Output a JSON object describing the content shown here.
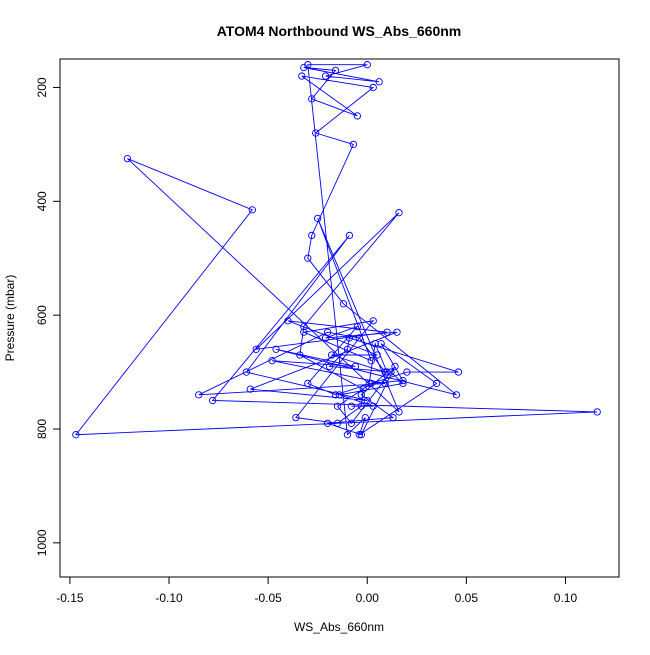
{
  "chart_data": {
    "type": "scatter",
    "title": "ATOM4 Northbound WS_Abs_660nm",
    "xlabel": "WS_Abs_660nm",
    "ylabel": "Pressure (mbar)",
    "xlim": [
      -0.155,
      0.127
    ],
    "ylim": [
      1060,
      150
    ],
    "y_reversed": true,
    "grid": false,
    "legend": "none",
    "x_ticks": [
      {
        "value": -0.15,
        "label": "-0.15"
      },
      {
        "value": -0.1,
        "label": "-0.10"
      },
      {
        "value": -0.05,
        "label": "-0.05"
      },
      {
        "value": 0.0,
        "label": "0.00"
      },
      {
        "value": 0.05,
        "label": "0.05"
      },
      {
        "value": 0.1,
        "label": "0.10"
      }
    ],
    "y_ticks": [
      {
        "value": 200,
        "label": "200"
      },
      {
        "value": 400,
        "label": "400"
      },
      {
        "value": 600,
        "label": "600"
      },
      {
        "value": 800,
        "label": "800"
      },
      {
        "value": 1000,
        "label": "1000"
      }
    ],
    "colors": {
      "series": "#0000ff",
      "axis": "#000000",
      "background": "#ffffff"
    },
    "series": [
      {
        "style": "line+circle-markers",
        "x": [
          0.001,
          0.004,
          0.01,
          -0.003,
          0.013,
          -0.02,
          -0.003,
          0.014,
          -0.008,
          -0.015,
          0.002,
          0.018,
          0.007,
          0.035,
          -0.004,
          -0.001,
          -0.01,
          -0.03,
          0.0,
          -0.021,
          0.006,
          -0.032,
          -0.016,
          -0.028,
          -0.005,
          -0.033,
          0.003,
          -0.026,
          -0.007,
          -0.028,
          -0.03,
          -0.012,
          0.045,
          -0.046,
          -0.006,
          -0.048,
          0.009,
          -0.085,
          -0.02,
          -0.004,
          0.009,
          -0.018,
          0.005,
          -0.04,
          0.01,
          -0.056,
          0.016,
          -0.032,
          -0.034,
          -0.002,
          -0.003,
          -0.015,
          -0.036,
          0.003,
          -0.032,
          0.002,
          -0.025,
          0.016,
          -0.121,
          -0.058,
          -0.147,
          0.116,
          -0.078,
          -0.009,
          -0.061,
          0.0,
          -0.059,
          0.015,
          -0.021,
          -0.005,
          -0.03,
          -0.016,
          0.02,
          0.046,
          -0.009,
          -0.01,
          -0.019,
          0.012,
          0.018,
          -0.014,
          0.003,
          -0.008
        ],
        "y": [
          720,
          650,
          700,
          740,
          780,
          790,
          810,
          690,
          790,
          760,
          720,
          715,
          650,
          720,
          810,
          780,
          810,
          160,
          160,
          180,
          190,
          165,
          170,
          220,
          250,
          180,
          200,
          280,
          300,
          460,
          500,
          580,
          740,
          660,
          690,
          680,
          720,
          740,
          630,
          640,
          700,
          670,
          670,
          610,
          630,
          660,
          420,
          620,
          670,
          730,
          760,
          790,
          780,
          610,
          630,
          680,
          430,
          770,
          325,
          415,
          810,
          770,
          750,
          460,
          700,
          750,
          730,
          630,
          640,
          620,
          720,
          740,
          700,
          700,
          640,
          660,
          690,
          700,
          720,
          740,
          760,
          760
        ]
      }
    ]
  }
}
